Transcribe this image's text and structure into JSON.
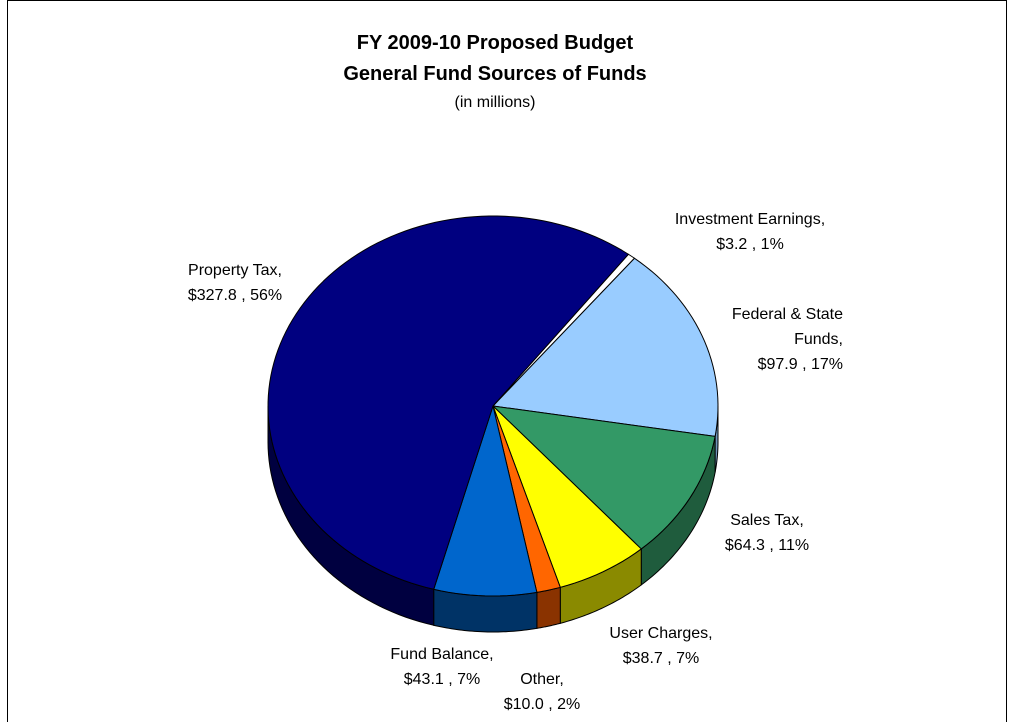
{
  "chart_data": {
    "type": "pie",
    "title": "FY 2009-10 Proposed Budget",
    "subtitle": "General Fund Sources of Funds",
    "units_note": "(in millions)",
    "slices": [
      {
        "label": "Investment Earnings,",
        "value_text": "$3.2 , 1%",
        "value": 3.2,
        "percent": 1,
        "color": "#FFFFFF",
        "side": "#C8C8C8"
      },
      {
        "label": "Federal & State Funds,",
        "value_text": "$97.9 , 17%",
        "value": 97.9,
        "percent": 17,
        "color": "#99CCFF",
        "side": "#6E93B8"
      },
      {
        "label": "Sales Tax,",
        "value_text": "$64.3 , 11%",
        "value": 64.3,
        "percent": 11,
        "color": "#339966",
        "side": "#1F5C3D"
      },
      {
        "label": "User Charges,",
        "value_text": "$38.7 , 7%",
        "value": 38.7,
        "percent": 7,
        "color": "#FFFF00",
        "side": "#8A8A00"
      },
      {
        "label": "Other,",
        "value_text": "$10.0 , 2%",
        "value": 10.0,
        "percent": 2,
        "color": "#FF6600",
        "side": "#8A3300"
      },
      {
        "label": "Fund Balance,",
        "value_text": "$43.1 , 7%",
        "value": 43.1,
        "percent": 7,
        "color": "#0066CC",
        "side": "#003366"
      },
      {
        "label": "Property Tax,",
        "value_text": "$327.8 , 56%",
        "value": 327.8,
        "percent": 56,
        "color": "#000080",
        "side": "#000040"
      }
    ]
  },
  "slice_label_lines": [
    [
      "Investment Earnings,",
      "$3.2 , 1%"
    ],
    [
      "Federal & State",
      "Funds,",
      "$97.9 , 17%"
    ],
    [
      "Sales Tax,",
      "$64.3 , 11%"
    ],
    [
      "User Charges,",
      "$38.7 , 7%"
    ],
    [
      "Other,",
      "$10.0 , 2%"
    ],
    [
      "Fund Balance,",
      "$43.1 , 7%"
    ],
    [
      "Property Tax,",
      "$327.8 , 56%"
    ]
  ]
}
